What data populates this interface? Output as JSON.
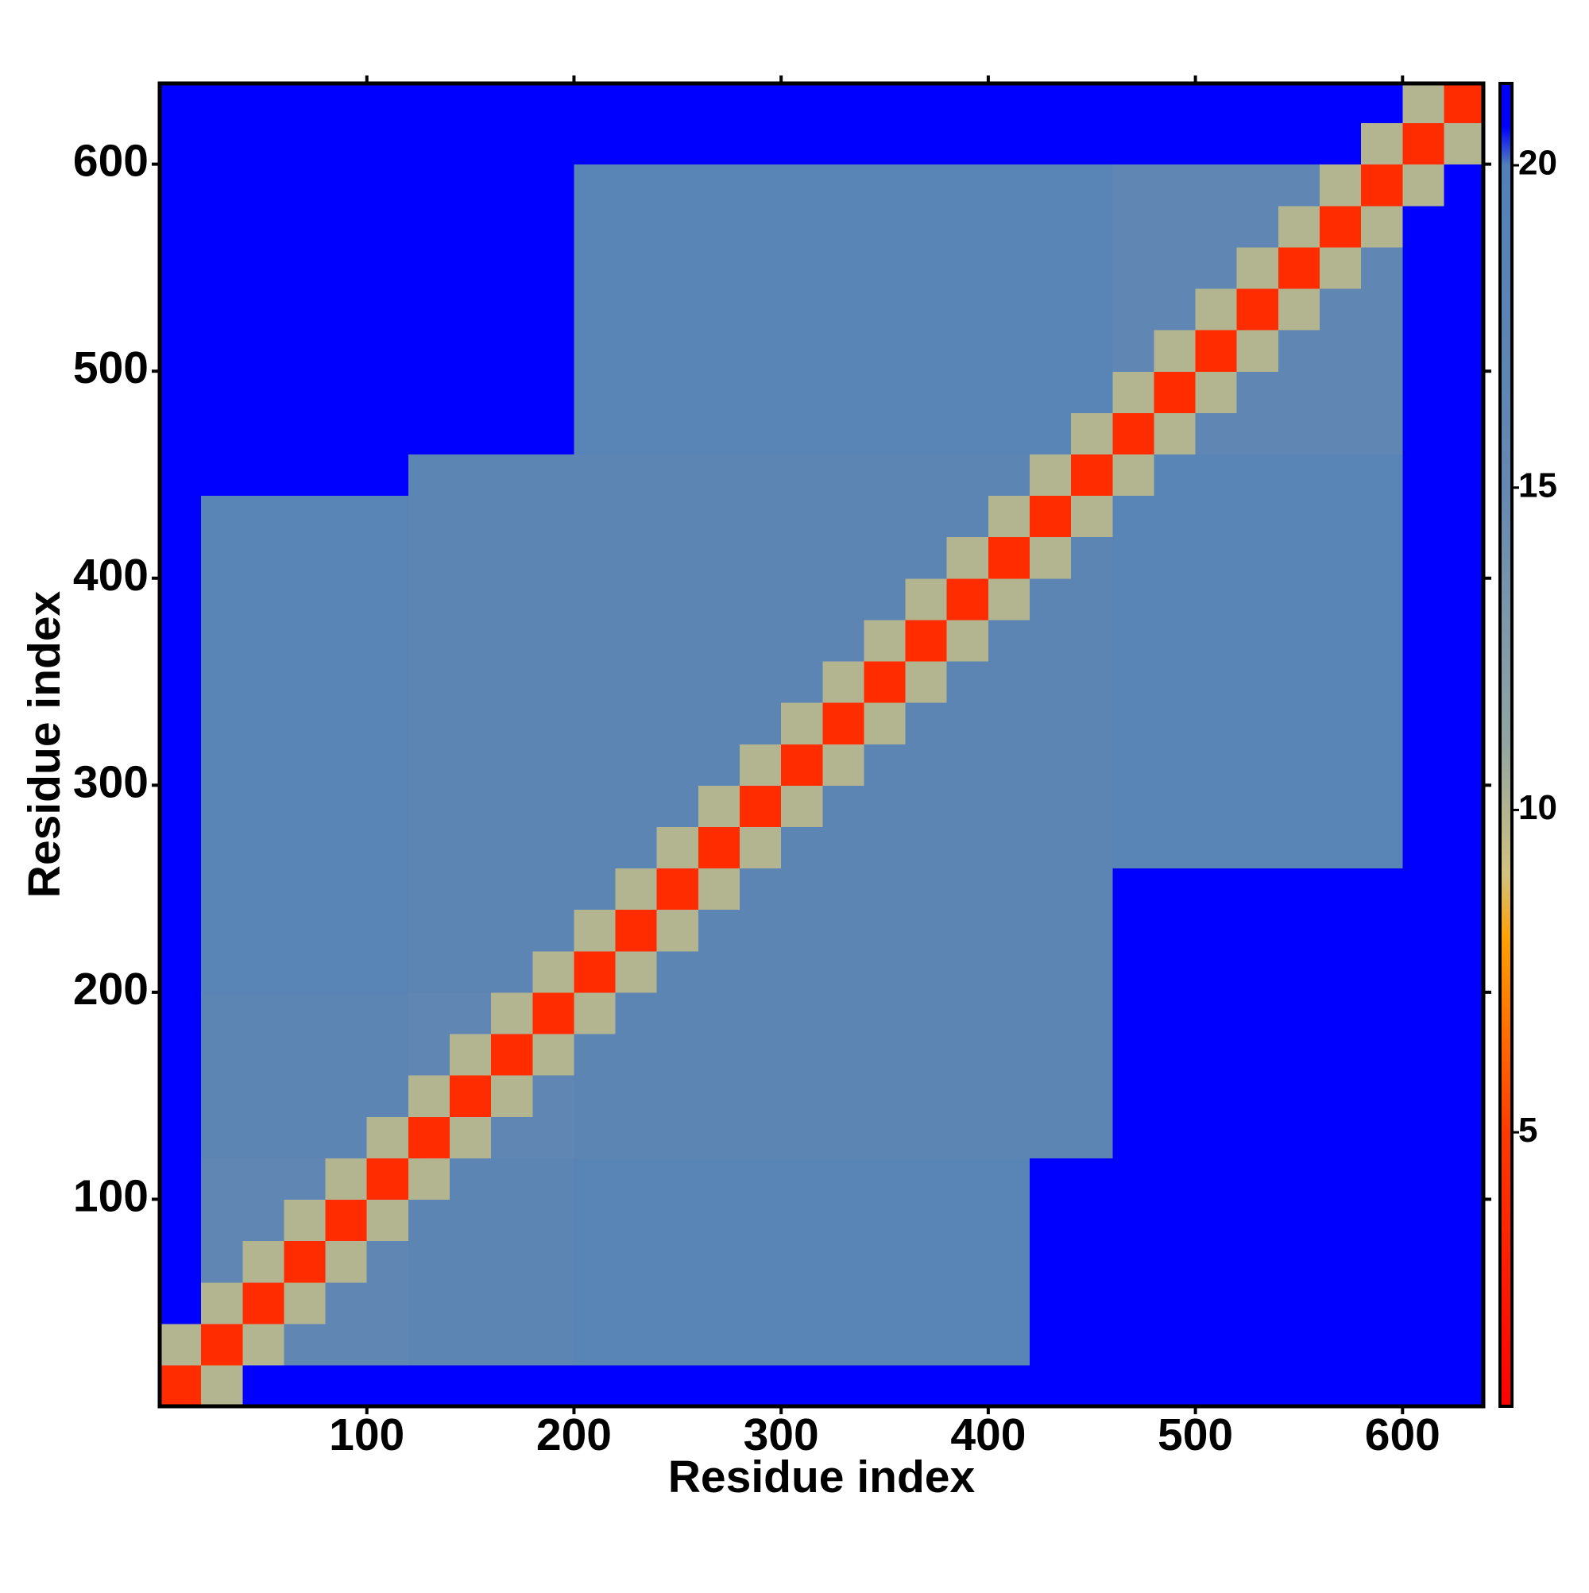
{
  "chart_data": {
    "type": "heatmap",
    "x_label": "Residue index",
    "y_label": "Residue index",
    "xlim": [
      0,
      639
    ],
    "ylim": [
      0,
      639
    ],
    "xticks": [
      100,
      200,
      300,
      400,
      500,
      600
    ],
    "yticks": [
      100,
      200,
      300,
      400,
      500,
      600
    ],
    "zlim": [
      0.75,
      21.27
    ],
    "zticks": [
      5,
      10,
      15,
      20
    ],
    "colorscale": [
      [
        0.75,
        "#ff0000"
      ],
      [
        5,
        "#ff3a00"
      ],
      [
        8,
        "#ffa000"
      ],
      [
        9,
        "#d2c27e"
      ],
      [
        11,
        "#93a5a2"
      ],
      [
        15,
        "#6489b2"
      ],
      [
        20,
        "#5280b8"
      ],
      [
        20.6,
        "#0000ff"
      ],
      [
        21.27,
        "#0000ff"
      ]
    ],
    "xbins": [
      0,
      20,
      40,
      60,
      80,
      100,
      120,
      140,
      160,
      180,
      200,
      220,
      240,
      260,
      280,
      300,
      320,
      340,
      360,
      380,
      400,
      420,
      440,
      460,
      480,
      500,
      520,
      540,
      560,
      580,
      600,
      620,
      640
    ],
    "ybins": [
      0,
      20,
      40,
      60,
      80,
      100,
      120,
      140,
      160,
      180,
      200,
      220,
      240,
      260,
      280,
      300,
      320,
      340,
      360,
      380,
      400,
      420,
      440,
      460,
      480,
      500,
      520,
      540,
      560,
      580,
      600,
      620,
      640
    ],
    "z": [
      [
        4,
        10,
        21,
        21,
        21,
        21,
        21,
        21,
        21,
        21,
        21,
        21,
        21,
        21,
        21,
        21,
        21,
        21,
        21,
        21,
        21,
        21,
        21,
        21,
        21,
        21,
        21,
        21,
        21,
        21,
        21,
        21
      ],
      [
        10,
        4,
        10,
        16,
        16,
        16,
        17,
        17,
        17,
        17,
        18,
        18,
        18,
        18,
        18,
        18,
        18,
        18,
        18,
        18,
        18,
        21,
        21,
        21,
        21,
        21,
        21,
        21,
        21,
        21,
        21,
        21
      ],
      [
        21,
        10,
        4,
        10,
        16,
        16,
        17,
        17,
        17,
        17,
        18,
        18,
        18,
        18,
        18,
        18,
        18,
        18,
        18,
        18,
        18,
        21,
        21,
        21,
        21,
        21,
        21,
        21,
        21,
        21,
        21,
        21
      ],
      [
        21,
        16,
        10,
        4,
        10,
        16,
        17,
        17,
        17,
        17,
        18,
        18,
        18,
        18,
        18,
        18,
        18,
        18,
        18,
        18,
        18,
        21,
        21,
        21,
        21,
        21,
        21,
        21,
        21,
        21,
        21,
        21
      ],
      [
        21,
        16,
        16,
        10,
        4,
        10,
        17,
        17,
        17,
        17,
        18,
        18,
        18,
        18,
        18,
        18,
        18,
        18,
        18,
        18,
        18,
        21,
        21,
        21,
        21,
        21,
        21,
        21,
        21,
        21,
        21,
        21
      ],
      [
        21,
        16,
        16,
        16,
        10,
        4,
        10,
        17,
        17,
        17,
        18,
        18,
        18,
        18,
        18,
        18,
        18,
        18,
        18,
        18,
        18,
        21,
        21,
        21,
        21,
        21,
        21,
        21,
        21,
        21,
        21,
        21
      ],
      [
        21,
        17,
        17,
        17,
        17,
        10,
        4,
        10,
        16,
        16,
        17,
        17,
        17,
        17,
        17,
        17,
        17,
        17,
        17,
        17,
        17,
        17,
        17,
        21,
        21,
        21,
        21,
        21,
        21,
        21,
        21,
        21
      ],
      [
        21,
        17,
        17,
        17,
        17,
        17,
        10,
        4,
        10,
        16,
        17,
        17,
        17,
        17,
        17,
        17,
        17,
        17,
        17,
        17,
        17,
        17,
        17,
        21,
        21,
        21,
        21,
        21,
        21,
        21,
        21,
        21
      ],
      [
        21,
        17,
        17,
        17,
        17,
        17,
        16,
        10,
        4,
        10,
        17,
        17,
        17,
        17,
        17,
        17,
        17,
        17,
        17,
        17,
        17,
        17,
        17,
        21,
        21,
        21,
        21,
        21,
        21,
        21,
        21,
        21
      ],
      [
        21,
        17,
        17,
        17,
        17,
        17,
        16,
        16,
        10,
        4,
        10,
        17,
        17,
        17,
        17,
        17,
        17,
        17,
        17,
        17,
        17,
        17,
        17,
        21,
        21,
        21,
        21,
        21,
        21,
        21,
        21,
        21
      ],
      [
        21,
        18,
        18,
        18,
        18,
        18,
        17,
        17,
        17,
        10,
        4,
        10,
        17,
        17,
        17,
        17,
        17,
        17,
        17,
        17,
        17,
        17,
        17,
        21,
        21,
        21,
        21,
        21,
        21,
        21,
        21,
        21
      ],
      [
        21,
        18,
        18,
        18,
        18,
        18,
        17,
        17,
        17,
        17,
        10,
        4,
        10,
        17,
        17,
        17,
        17,
        17,
        17,
        17,
        17,
        17,
        17,
        21,
        21,
        21,
        21,
        21,
        21,
        21,
        21,
        21
      ],
      [
        21,
        18,
        18,
        18,
        18,
        18,
        17,
        17,
        17,
        17,
        17,
        10,
        4,
        10,
        17,
        17,
        17,
        17,
        17,
        17,
        17,
        17,
        17,
        21,
        21,
        21,
        21,
        21,
        21,
        21,
        21,
        21
      ],
      [
        21,
        18,
        18,
        18,
        18,
        18,
        17,
        17,
        17,
        17,
        17,
        17,
        10,
        4,
        10,
        17,
        17,
        17,
        17,
        17,
        17,
        17,
        17,
        18,
        18,
        18,
        18,
        18,
        18,
        18,
        21,
        21
      ],
      [
        21,
        18,
        18,
        18,
        18,
        18,
        17,
        17,
        17,
        17,
        17,
        17,
        17,
        10,
        4,
        10,
        17,
        17,
        17,
        17,
        17,
        17,
        17,
        18,
        18,
        18,
        18,
        18,
        18,
        18,
        21,
        21
      ],
      [
        21,
        18,
        18,
        18,
        18,
        18,
        17,
        17,
        17,
        17,
        17,
        17,
        17,
        17,
        10,
        4,
        10,
        17,
        17,
        17,
        17,
        17,
        17,
        18,
        18,
        18,
        18,
        18,
        18,
        18,
        21,
        21
      ],
      [
        21,
        18,
        18,
        18,
        18,
        18,
        17,
        17,
        17,
        17,
        17,
        17,
        17,
        17,
        17,
        10,
        4,
        10,
        17,
        17,
        17,
        17,
        17,
        18,
        18,
        18,
        18,
        18,
        18,
        18,
        21,
        21
      ],
      [
        21,
        18,
        18,
        18,
        18,
        18,
        17,
        17,
        17,
        17,
        17,
        17,
        17,
        17,
        17,
        17,
        10,
        4,
        10,
        17,
        17,
        17,
        17,
        18,
        18,
        18,
        18,
        18,
        18,
        18,
        21,
        21
      ],
      [
        21,
        18,
        18,
        18,
        18,
        18,
        17,
        17,
        17,
        17,
        17,
        17,
        17,
        17,
        17,
        17,
        17,
        10,
        4,
        10,
        17,
        17,
        17,
        18,
        18,
        18,
        18,
        18,
        18,
        18,
        21,
        21
      ],
      [
        21,
        18,
        18,
        18,
        18,
        18,
        17,
        17,
        17,
        17,
        17,
        17,
        17,
        17,
        17,
        17,
        17,
        17,
        10,
        4,
        10,
        17,
        17,
        18,
        18,
        18,
        18,
        18,
        18,
        18,
        21,
        21
      ],
      [
        21,
        18,
        18,
        18,
        18,
        18,
        17,
        17,
        17,
        17,
        17,
        17,
        17,
        17,
        17,
        17,
        17,
        17,
        17,
        10,
        4,
        10,
        17,
        18,
        18,
        18,
        18,
        18,
        18,
        18,
        21,
        21
      ],
      [
        21,
        18,
        18,
        18,
        18,
        18,
        17,
        17,
        17,
        17,
        17,
        17,
        17,
        17,
        17,
        17,
        17,
        17,
        17,
        17,
        10,
        4,
        10,
        18,
        18,
        18,
        18,
        18,
        18,
        18,
        21,
        21
      ],
      [
        21,
        21,
        21,
        21,
        21,
        21,
        17,
        17,
        17,
        17,
        17,
        17,
        17,
        17,
        17,
        17,
        17,
        17,
        17,
        17,
        17,
        10,
        4,
        10,
        18,
        18,
        18,
        18,
        18,
        18,
        21,
        21
      ],
      [
        21,
        21,
        21,
        21,
        21,
        21,
        21,
        21,
        21,
        21,
        18,
        18,
        18,
        18,
        18,
        18,
        18,
        18,
        18,
        18,
        18,
        18,
        10,
        4,
        10,
        16,
        16,
        16,
        16,
        16,
        21,
        21
      ],
      [
        21,
        21,
        21,
        21,
        21,
        21,
        21,
        21,
        21,
        21,
        18,
        18,
        18,
        18,
        18,
        18,
        18,
        18,
        18,
        18,
        18,
        18,
        18,
        10,
        4,
        10,
        16,
        16,
        16,
        16,
        21,
        21
      ],
      [
        21,
        21,
        21,
        21,
        21,
        21,
        21,
        21,
        21,
        21,
        18,
        18,
        18,
        18,
        18,
        18,
        18,
        18,
        18,
        18,
        18,
        18,
        18,
        16,
        10,
        4,
        10,
        16,
        16,
        16,
        21,
        21
      ],
      [
        21,
        21,
        21,
        21,
        21,
        21,
        21,
        21,
        21,
        21,
        18,
        18,
        18,
        18,
        18,
        18,
        18,
        18,
        18,
        18,
        18,
        18,
        18,
        16,
        16,
        10,
        4,
        10,
        16,
        16,
        21,
        21
      ],
      [
        21,
        21,
        21,
        21,
        21,
        21,
        21,
        21,
        21,
        21,
        18,
        18,
        18,
        18,
        18,
        18,
        18,
        18,
        18,
        18,
        18,
        18,
        18,
        16,
        16,
        16,
        10,
        4,
        10,
        16,
        21,
        21
      ],
      [
        21,
        21,
        21,
        21,
        21,
        21,
        21,
        21,
        21,
        21,
        18,
        18,
        18,
        18,
        18,
        18,
        18,
        18,
        18,
        18,
        18,
        18,
        18,
        16,
        16,
        16,
        16,
        10,
        4,
        10,
        21,
        21
      ],
      [
        21,
        21,
        21,
        21,
        21,
        21,
        21,
        21,
        21,
        21,
        18,
        18,
        18,
        18,
        18,
        18,
        18,
        18,
        18,
        18,
        18,
        18,
        18,
        16,
        16,
        16,
        16,
        16,
        10,
        4,
        10,
        21
      ],
      [
        21,
        21,
        21,
        21,
        21,
        21,
        21,
        21,
        21,
        21,
        21,
        21,
        21,
        21,
        21,
        21,
        21,
        21,
        21,
        21,
        21,
        21,
        21,
        21,
        21,
        21,
        21,
        21,
        21,
        10,
        4,
        10
      ],
      [
        21,
        21,
        21,
        21,
        21,
        21,
        21,
        21,
        21,
        21,
        21,
        21,
        21,
        21,
        21,
        21,
        21,
        21,
        21,
        21,
        21,
        21,
        21,
        21,
        21,
        21,
        21,
        21,
        21,
        21,
        10,
        4
      ]
    ]
  }
}
